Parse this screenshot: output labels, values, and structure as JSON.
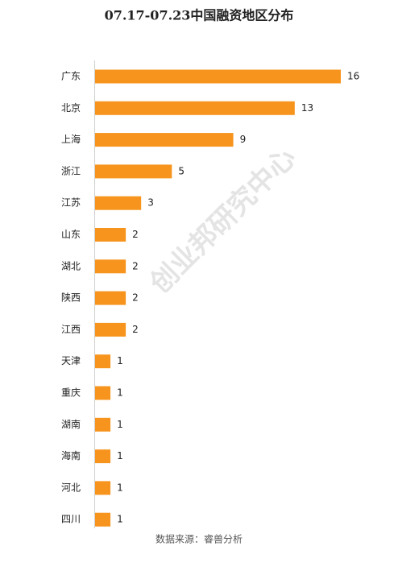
{
  "chart_data": {
    "type": "bar",
    "orientation": "horizontal",
    "title": "07.17-07.23中国融资地区分布",
    "categories": [
      "广东",
      "北京",
      "上海",
      "浙江",
      "江苏",
      "山东",
      "湖北",
      "陕西",
      "江西",
      "天津",
      "重庆",
      "湖南",
      "海南",
      "河北",
      "四川"
    ],
    "values": [
      16,
      13,
      9,
      5,
      3,
      2,
      2,
      2,
      2,
      1,
      1,
      1,
      1,
      1,
      1
    ],
    "color": "#f7941d",
    "watermark": "创业邦研究中心",
    "source": "数据来源：睿兽分析"
  }
}
